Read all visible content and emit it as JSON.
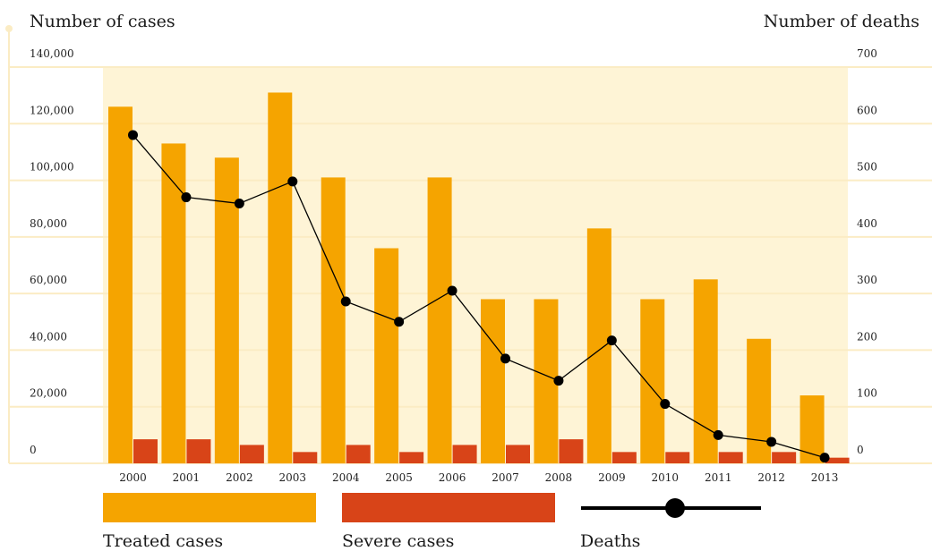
{
  "chart_data": {
    "type": "bar",
    "left_axis_title": "Number of cases",
    "right_axis_title": "Number of deaths",
    "categories": [
      "2000",
      "2001",
      "2002",
      "2003",
      "2004",
      "2005",
      "2006",
      "2007",
      "2008",
      "2009",
      "2010",
      "2011",
      "2012",
      "2013"
    ],
    "left_ticks": [
      "0",
      "20,000",
      "40,000",
      "60,000",
      "80,000",
      "100,000",
      "120,000",
      "140,000"
    ],
    "right_ticks": [
      "0",
      "100",
      "200",
      "300",
      "400",
      "500",
      "600",
      "700"
    ],
    "left_ylim": [
      0,
      140000
    ],
    "right_ylim": [
      0,
      700
    ],
    "series": [
      {
        "name": "Treated cases",
        "axis": "left",
        "kind": "bar",
        "values": [
          126000,
          113000,
          108000,
          131000,
          101000,
          76000,
          101000,
          58000,
          58000,
          83000,
          58000,
          65000,
          44000,
          24000
        ]
      },
      {
        "name": "Severe cases",
        "axis": "left",
        "kind": "bar",
        "values": [
          8500,
          8500,
          6500,
          4000,
          6500,
          4000,
          6500,
          6500,
          8500,
          4000,
          4000,
          4000,
          4000,
          2000
        ]
      },
      {
        "name": "Deaths",
        "axis": "right",
        "kind": "line",
        "values": [
          580,
          470,
          459,
          498,
          286,
          250,
          305,
          185,
          146,
          217,
          105,
          50,
          38,
          10
        ]
      }
    ],
    "colors": {
      "treated": "#F5A400",
      "severe": "#D84418",
      "deaths": "#000000",
      "plot_band": "#FEF4D6",
      "grid": "#FBECC4"
    },
    "grid": true,
    "legend_position": "bottom"
  }
}
